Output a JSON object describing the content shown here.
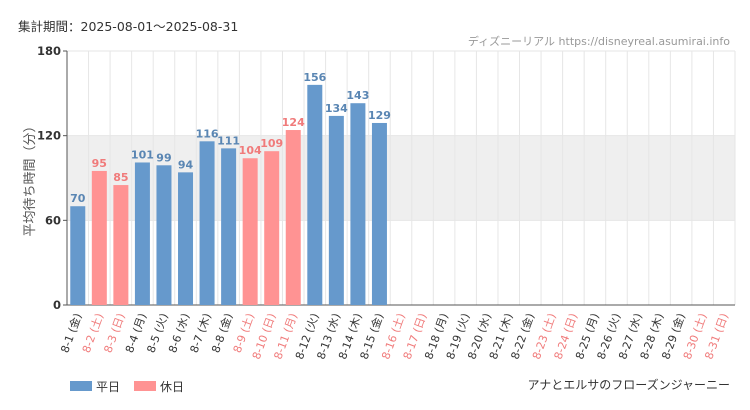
{
  "header": {
    "period": "集計期間：2025-08-01～2025-08-31",
    "source": "ディズニーリアル https://disneyreal.asumirai.info",
    "attraction": "アナとエルサのフローズンジャーニー"
  },
  "colors": {
    "weekday": "#6699cc",
    "holiday": "#ff9393",
    "weekday_label": "#5a86b3",
    "holiday_label": "#f07b7b",
    "band": "#efefef",
    "grid": "#e6e6e6",
    "axis_text": "#333333"
  },
  "chart_data": {
    "type": "bar",
    "ylabel": "平均待ち時間（分）",
    "ylim": [
      0,
      180
    ],
    "yticks": [
      0,
      60,
      120,
      180
    ],
    "shaded_band": [
      60,
      120
    ],
    "legend": {
      "position": "bottom-left",
      "items": [
        {
          "label": "平日",
          "color": "#6699cc"
        },
        {
          "label": "休日",
          "color": "#ff9393"
        }
      ]
    },
    "categories": [
      {
        "label": "8-1 (金)",
        "value": 70,
        "holiday": false
      },
      {
        "label": "8-2 (土)",
        "value": 95,
        "holiday": true
      },
      {
        "label": "8-3 (日)",
        "value": 85,
        "holiday": true
      },
      {
        "label": "8-4 (月)",
        "value": 101,
        "holiday": false
      },
      {
        "label": "8-5 (火)",
        "value": 99,
        "holiday": false
      },
      {
        "label": "8-6 (水)",
        "value": 94,
        "holiday": false
      },
      {
        "label": "8-7 (木)",
        "value": 116,
        "holiday": false
      },
      {
        "label": "8-8 (金)",
        "value": 111,
        "holiday": false
      },
      {
        "label": "8-9 (土)",
        "value": 104,
        "holiday": true
      },
      {
        "label": "8-10 (日)",
        "value": 109,
        "holiday": true
      },
      {
        "label": "8-11 (月)",
        "value": 124,
        "holiday": true
      },
      {
        "label": "8-12 (火)",
        "value": 156,
        "holiday": false
      },
      {
        "label": "8-13 (水)",
        "value": 134,
        "holiday": false
      },
      {
        "label": "8-14 (木)",
        "value": 143,
        "holiday": false
      },
      {
        "label": "8-15 (金)",
        "value": 129,
        "holiday": false
      },
      {
        "label": "8-16 (土)",
        "value": null,
        "holiday": true
      },
      {
        "label": "8-17 (日)",
        "value": null,
        "holiday": true
      },
      {
        "label": "8-18 (月)",
        "value": null,
        "holiday": false
      },
      {
        "label": "8-19 (火)",
        "value": null,
        "holiday": false
      },
      {
        "label": "8-20 (水)",
        "value": null,
        "holiday": false
      },
      {
        "label": "8-21 (木)",
        "value": null,
        "holiday": false
      },
      {
        "label": "8-22 (金)",
        "value": null,
        "holiday": false
      },
      {
        "label": "8-23 (土)",
        "value": null,
        "holiday": true
      },
      {
        "label": "8-24 (日)",
        "value": null,
        "holiday": true
      },
      {
        "label": "8-25 (月)",
        "value": null,
        "holiday": false
      },
      {
        "label": "8-26 (火)",
        "value": null,
        "holiday": false
      },
      {
        "label": "8-27 (水)",
        "value": null,
        "holiday": false
      },
      {
        "label": "8-28 (木)",
        "value": null,
        "holiday": false
      },
      {
        "label": "8-29 (金)",
        "value": null,
        "holiday": false
      },
      {
        "label": "8-30 (土)",
        "value": null,
        "holiday": true
      },
      {
        "label": "8-31 (日)",
        "value": null,
        "holiday": true
      }
    ]
  }
}
